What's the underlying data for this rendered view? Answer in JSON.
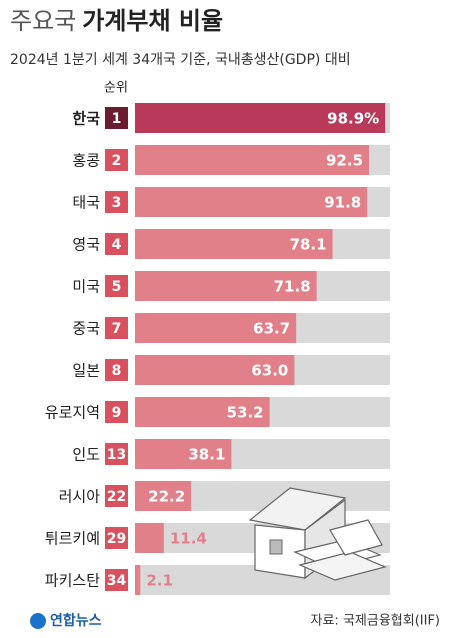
{
  "chart_data": {
    "type": "bar",
    "title": {
      "light": "주요국",
      "bold": "가계부채 비율"
    },
    "subtitle": "2024년 1분기 세계 34개국 기준, 국내총생산(GDP) 대비",
    "rank_header": "순위",
    "categories": [
      "한국",
      "홍콩",
      "태국",
      "영국",
      "미국",
      "중국",
      "일본",
      "유로지역",
      "인도",
      "러시아",
      "튀르키예",
      "파키스탄"
    ],
    "ranks": [
      1,
      2,
      3,
      4,
      5,
      7,
      8,
      9,
      13,
      22,
      29,
      34
    ],
    "values": [
      98.9,
      92.5,
      91.8,
      78.1,
      71.8,
      63.7,
      63.0,
      53.2,
      38.1,
      22.2,
      11.4,
      2.1
    ],
    "value_labels": [
      "98.9%",
      "92.5",
      "91.8",
      "78.1",
      "71.8",
      "63.7",
      "63.0",
      "53.2",
      "38.1",
      "22.2",
      "11.4",
      "2.1"
    ],
    "colors": [
      "#b8395a",
      "#e2808a",
      "#e2808a",
      "#e2808a",
      "#e2808a",
      "#e2808a",
      "#e2808a",
      "#e2808a",
      "#e2808a",
      "#e2808a",
      "#e2808a",
      "#e2808a"
    ],
    "rank_colors": [
      "#6b1c31",
      "#d9505f",
      "#d9505f",
      "#d9505f",
      "#d9505f",
      "#d9505f",
      "#d9505f",
      "#d9505f",
      "#d9505f",
      "#d9505f",
      "#d9505f",
      "#d9505f"
    ],
    "xlim": [
      0,
      100
    ],
    "source": "자료: 국제금융협회(IIF)",
    "logo": "연합뉴스"
  }
}
